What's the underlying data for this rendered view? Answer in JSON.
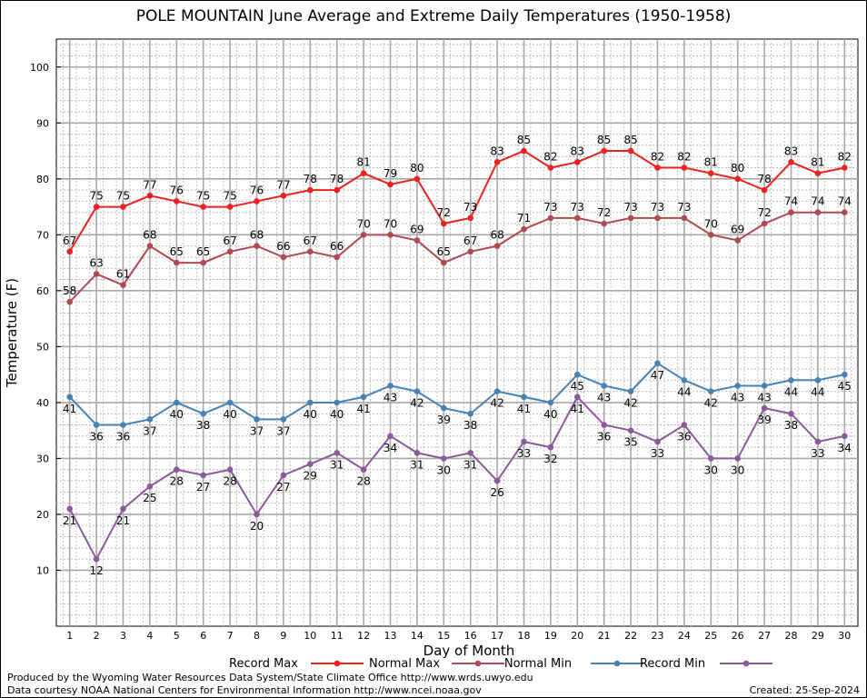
{
  "chart_data": {
    "type": "line",
    "title": "POLE MOUNTAIN June Average and Extreme Daily Temperatures (1950-1958)",
    "xlabel": "Day of Month",
    "ylabel": "Temperature (F)",
    "ylim": [
      0,
      105
    ],
    "xlim": [
      0.5,
      30.5
    ],
    "y_ticks": [
      10,
      20,
      30,
      40,
      50,
      60,
      70,
      80,
      90,
      100
    ],
    "grid": true,
    "legend_position": "bottom",
    "x": [
      1,
      2,
      3,
      4,
      5,
      6,
      7,
      8,
      9,
      10,
      11,
      12,
      13,
      14,
      15,
      16,
      17,
      18,
      19,
      20,
      21,
      22,
      23,
      24,
      25,
      26,
      27,
      28,
      29,
      30
    ],
    "series": [
      {
        "name": "Record Max",
        "color": "#ee2020",
        "label_position": "above",
        "values": [
          67,
          75,
          75,
          77,
          76,
          75,
          75,
          76,
          77,
          78,
          78,
          81,
          79,
          80,
          72,
          73,
          83,
          85,
          82,
          83,
          85,
          85,
          82,
          82,
          81,
          80,
          78,
          83,
          81,
          82
        ]
      },
      {
        "name": "Normal Max",
        "color": "#b04a52",
        "label_position": "above",
        "values": [
          58,
          63,
          61,
          68,
          65,
          65,
          67,
          68,
          66,
          67,
          66,
          70,
          70,
          69,
          65,
          67,
          68,
          71,
          73,
          73,
          72,
          73,
          73,
          73,
          70,
          69,
          72,
          74,
          74,
          74
        ]
      },
      {
        "name": "Normal Min",
        "color": "#4682b4",
        "label_position": "below",
        "values": [
          41,
          36,
          36,
          37,
          40,
          38,
          40,
          37,
          37,
          40,
          40,
          41,
          43,
          42,
          39,
          38,
          42,
          41,
          40,
          45,
          43,
          42,
          47,
          44,
          42,
          43,
          43,
          44,
          44,
          45
        ]
      },
      {
        "name": "Record Min",
        "color": "#8a5a9a",
        "label_position": "below",
        "values": [
          21,
          12,
          21,
          25,
          28,
          27,
          28,
          20,
          27,
          29,
          31,
          28,
          34,
          31,
          30,
          31,
          26,
          33,
          32,
          41,
          36,
          35,
          33,
          36,
          30,
          30,
          39,
          38,
          33,
          34
        ]
      }
    ]
  },
  "footer": {
    "credit_line1": "Produced by the Wyoming Water Resources Data System/State Climate Office http://www.wrds.uwyo.edu",
    "credit_line2": "Data courtesy NOAA National Centers for Environmental Information http://www.ncei.noaa.gov",
    "created": "Created:  25-Sep-2024"
  }
}
